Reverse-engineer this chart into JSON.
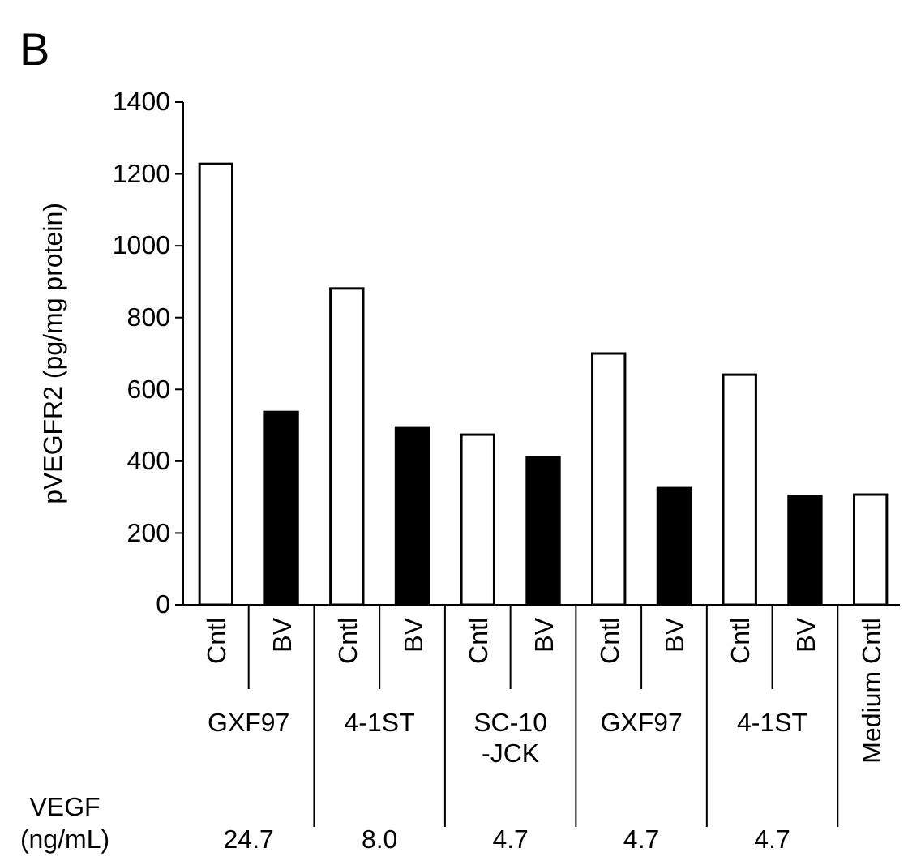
{
  "chart_data": {
    "type": "bar",
    "title": "B",
    "ylabel": "pVEGFR2 (pg/mg protein)",
    "categories": [
      "Cntl",
      "BV",
      "Cntl",
      "BV",
      "Cntl",
      "BV",
      "Cntl",
      "BV",
      "Cntl",
      "BV",
      "Medium Cntl"
    ],
    "values": [
      1228,
      537,
      881,
      492,
      474,
      411,
      700,
      325,
      641,
      303,
      307
    ],
    "colors": [
      "#ffffff",
      "#000000",
      "#ffffff",
      "#000000",
      "#ffffff",
      "#000000",
      "#ffffff",
      "#000000",
      "#ffffff",
      "#000000",
      "#ffffff"
    ],
    "ylim": [
      0,
      1400
    ],
    "yticks": [
      0,
      200,
      400,
      600,
      800,
      1000,
      1200,
      1400
    ],
    "annotations": [
      "GXF97",
      "4-1ST",
      "SC-10-JCK",
      "GXF97",
      "4-1ST",
      "VEGF (ng/mL)",
      "24.7",
      "8.0",
      "4.7",
      "4.7",
      "4.7"
    ]
  }
}
